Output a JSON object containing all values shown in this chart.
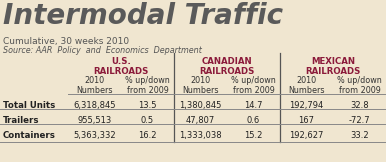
{
  "title": "Intermodal Traffic",
  "subtitle": "Cumulative, 30 weeks 2010",
  "source": "Source: AAR  Policy  and  Economics  Department",
  "bg_color": "#f0e6d0",
  "title_color": "#5a5a5a",
  "header_color": "#8b1a3a",
  "col_header_labels": [
    "U.S.\nRAILROADS",
    "CANADIAN\nRAILROADS",
    "MEXICAN\nRAILROADS"
  ],
  "sub_headers": [
    "2010\nNumbers",
    "% up/down\nfrom 2009"
  ],
  "row_labels": [
    "Total Units",
    "Trailers",
    "Containers"
  ],
  "data": [
    [
      "6,318,845",
      "13.5",
      "1,380,845",
      "14.7",
      "192,794",
      "32.8"
    ],
    [
      "955,513",
      "0.5",
      "47,807",
      "0.6",
      "167",
      "-72.7"
    ],
    [
      "5,363,332",
      "16.2",
      "1,333,038",
      "15.2",
      "192,627",
      "33.2"
    ]
  ],
  "title_fontsize": 20,
  "subtitle_fontsize": 6.5,
  "source_fontsize": 5.8,
  "header_fontsize": 6.2,
  "subheader_fontsize": 5.8,
  "data_fontsize": 6.0,
  "rowlabel_fontsize": 6.2
}
